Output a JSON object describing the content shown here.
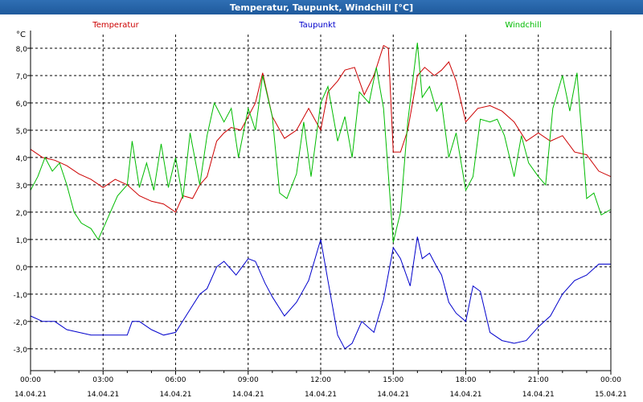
{
  "window": {
    "title": "Temperatur, Taupunkt, Windchill [°C]"
  },
  "chart_data": {
    "type": "line",
    "title": "Temperatur, Taupunkt, Windchill [°C]",
    "ylabel": "°C",
    "xlabel": "",
    "ylim": [
      -3.8,
      8.5
    ],
    "yticks": [
      8.0,
      7.0,
      6.0,
      5.0,
      4.0,
      3.0,
      2.0,
      1.0,
      0.0,
      -1.0,
      -2.0,
      -3.0
    ],
    "ytick_labels": [
      "8,0",
      "7,0",
      "6,0",
      "5,0",
      "4,0",
      "3,0",
      "2,0",
      "1,0",
      "0,0",
      "-1,0",
      "-2,0",
      "-3,0"
    ],
    "xlim": [
      0,
      24
    ],
    "xticks": [
      0,
      3,
      6,
      9,
      12,
      15,
      18,
      21,
      24
    ],
    "xtick_times": [
      "00:00",
      "03:00",
      "06:00",
      "09:00",
      "12:00",
      "15:00",
      "18:00",
      "21:00",
      "00:00"
    ],
    "xtick_dates": [
      "14.04.21",
      "14.04.21",
      "14.04.21",
      "14.04.21",
      "14.04.21",
      "14.04.21",
      "14.04.21",
      "14.04.21",
      "15.04.21"
    ],
    "grid": true,
    "legend_position": "top",
    "series": [
      {
        "name": "Temperatur",
        "color": "#cc0000",
        "x": [
          0,
          0.5,
          1,
          1.5,
          2,
          2.5,
          3,
          3.5,
          4,
          4.5,
          5,
          5.5,
          6,
          6.3,
          6.7,
          7,
          7.3,
          7.7,
          8,
          8.3,
          8.7,
          9,
          9.3,
          9.6,
          10,
          10.5,
          11,
          11.5,
          12,
          12.3,
          12.7,
          13,
          13.4,
          13.8,
          14.2,
          14.6,
          14.8,
          15,
          15.3,
          15.6,
          16,
          16.3,
          16.7,
          17,
          17.3,
          17.6,
          18,
          18.5,
          19,
          19.5,
          20,
          20.5,
          21,
          21.5,
          22,
          22.5,
          23,
          23.5,
          24
        ],
        "values": [
          4.3,
          4.0,
          3.9,
          3.7,
          3.4,
          3.2,
          2.9,
          3.2,
          3.0,
          2.6,
          2.4,
          2.3,
          2.0,
          2.6,
          2.5,
          3.0,
          3.3,
          4.6,
          4.9,
          5.1,
          5.0,
          5.5,
          6.0,
          7.1,
          5.5,
          4.7,
          5.0,
          5.8,
          5.0,
          6.4,
          6.8,
          7.2,
          7.3,
          6.3,
          7.0,
          8.1,
          8.0,
          4.2,
          4.2,
          5.0,
          7.0,
          7.3,
          7.0,
          7.2,
          7.5,
          6.8,
          5.3,
          5.8,
          5.9,
          5.7,
          5.3,
          4.6,
          4.9,
          4.6,
          4.8,
          4.2,
          4.1,
          3.5,
          3.3
        ]
      },
      {
        "name": "Taupunkt",
        "color": "#0000cc",
        "x": [
          0,
          0.5,
          1,
          1.5,
          2,
          2.5,
          3,
          3.5,
          4,
          4.2,
          4.5,
          5,
          5.5,
          6,
          6.5,
          7,
          7.3,
          7.7,
          8,
          8.5,
          9,
          9.3,
          9.7,
          10,
          10.5,
          11,
          11.5,
          12,
          12.3,
          12.7,
          13,
          13.3,
          13.7,
          14.2,
          14.6,
          15,
          15.3,
          15.7,
          16,
          16.2,
          16.5,
          16.8,
          17,
          17.3,
          17.6,
          18,
          18.3,
          18.6,
          19,
          19.5,
          20,
          20.5,
          21,
          21.5,
          22,
          22.5,
          23,
          23.5,
          24
        ],
        "values": [
          -1.8,
          -2.0,
          -2.0,
          -2.3,
          -2.4,
          -2.5,
          -2.5,
          -2.5,
          -2.5,
          -2.0,
          -2.0,
          -2.3,
          -2.5,
          -2.4,
          -1.7,
          -1.0,
          -0.8,
          0.0,
          0.2,
          -0.3,
          0.3,
          0.2,
          -0.6,
          -1.1,
          -1.8,
          -1.3,
          -0.5,
          1.0,
          -0.5,
          -2.5,
          -3.0,
          -2.8,
          -2.0,
          -2.4,
          -1.2,
          0.7,
          0.3,
          -0.7,
          1.1,
          0.3,
          0.5,
          0.0,
          -0.3,
          -1.3,
          -1.7,
          -2.0,
          -0.7,
          -0.9,
          -2.4,
          -2.7,
          -2.8,
          -2.7,
          -2.2,
          -1.8,
          -1.0,
          -0.5,
          -0.3,
          0.1,
          0.1
        ]
      },
      {
        "name": "Windchill",
        "color": "#00bb00",
        "x": [
          0,
          0.3,
          0.6,
          0.9,
          1.2,
          1.5,
          1.8,
          2.1,
          2.5,
          2.8,
          3.0,
          3.3,
          3.6,
          4.0,
          4.2,
          4.5,
          4.8,
          5.1,
          5.4,
          5.7,
          6.0,
          6.3,
          6.6,
          7.0,
          7.3,
          7.6,
          8.0,
          8.3,
          8.6,
          9.0,
          9.3,
          9.6,
          10.0,
          10.3,
          10.6,
          11.0,
          11.3,
          11.6,
          12.0,
          12.3,
          12.7,
          13.0,
          13.3,
          13.6,
          14.0,
          14.3,
          14.6,
          15.0,
          15.3,
          15.6,
          16.0,
          16.2,
          16.5,
          16.8,
          17.0,
          17.3,
          17.6,
          18.0,
          18.3,
          18.6,
          19.0,
          19.3,
          19.6,
          20.0,
          20.3,
          20.6,
          21.0,
          21.3,
          21.6,
          22.0,
          22.3,
          22.6,
          23.0,
          23.3,
          23.6,
          24.0
        ],
        "values": [
          2.8,
          3.3,
          4.0,
          3.5,
          3.8,
          3.0,
          2.0,
          1.6,
          1.4,
          1.0,
          1.4,
          2.0,
          2.6,
          3.0,
          4.6,
          2.9,
          3.8,
          2.8,
          4.5,
          2.9,
          4.0,
          2.5,
          4.9,
          3.0,
          4.8,
          6.0,
          5.3,
          5.8,
          4.0,
          5.8,
          5.0,
          7.0,
          5.5,
          2.7,
          2.5,
          3.4,
          5.3,
          3.3,
          6.0,
          6.6,
          4.6,
          5.5,
          4.0,
          6.4,
          6.0,
          7.3,
          5.8,
          0.9,
          2.0,
          5.3,
          8.2,
          6.2,
          6.6,
          5.7,
          6.0,
          4.0,
          4.9,
          2.8,
          3.3,
          5.4,
          5.3,
          5.4,
          4.8,
          3.3,
          4.8,
          3.8,
          3.3,
          3.0,
          5.8,
          7.0,
          5.7,
          7.1,
          2.5,
          2.7,
          1.9,
          2.1
        ]
      }
    ]
  }
}
